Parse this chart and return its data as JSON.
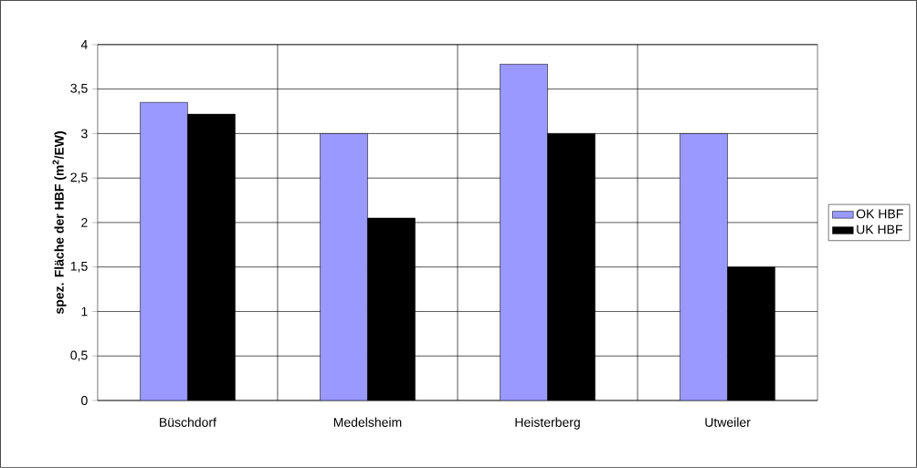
{
  "chart_data": {
    "type": "bar",
    "ylabel": "spez. Fläche der HBF (m$^{2}$/EW)",
    "categories": [
      "Büschdorf",
      "Medelsheim",
      "Heisterberg",
      "Utweiler"
    ],
    "series": [
      {
        "name": "OK HBF",
        "color": "#9999ff",
        "values": [
          3.35,
          3.0,
          3.78,
          3.0
        ]
      },
      {
        "name": "UK HBF",
        "color": "#000000",
        "values": [
          3.22,
          2.05,
          3.0,
          1.5
        ]
      }
    ],
    "ylim": [
      0,
      4
    ],
    "yticks": [
      0,
      {
        "value": 0.5,
        "label": "0,5"
      },
      1,
      {
        "value": 1.5,
        "label": "1,5"
      },
      2,
      {
        "value": 2.5,
        "label": "2,5"
      },
      3,
      {
        "value": 3.5,
        "label": "3,5"
      },
      4
    ],
    "grid": true,
    "legend": "right"
  }
}
